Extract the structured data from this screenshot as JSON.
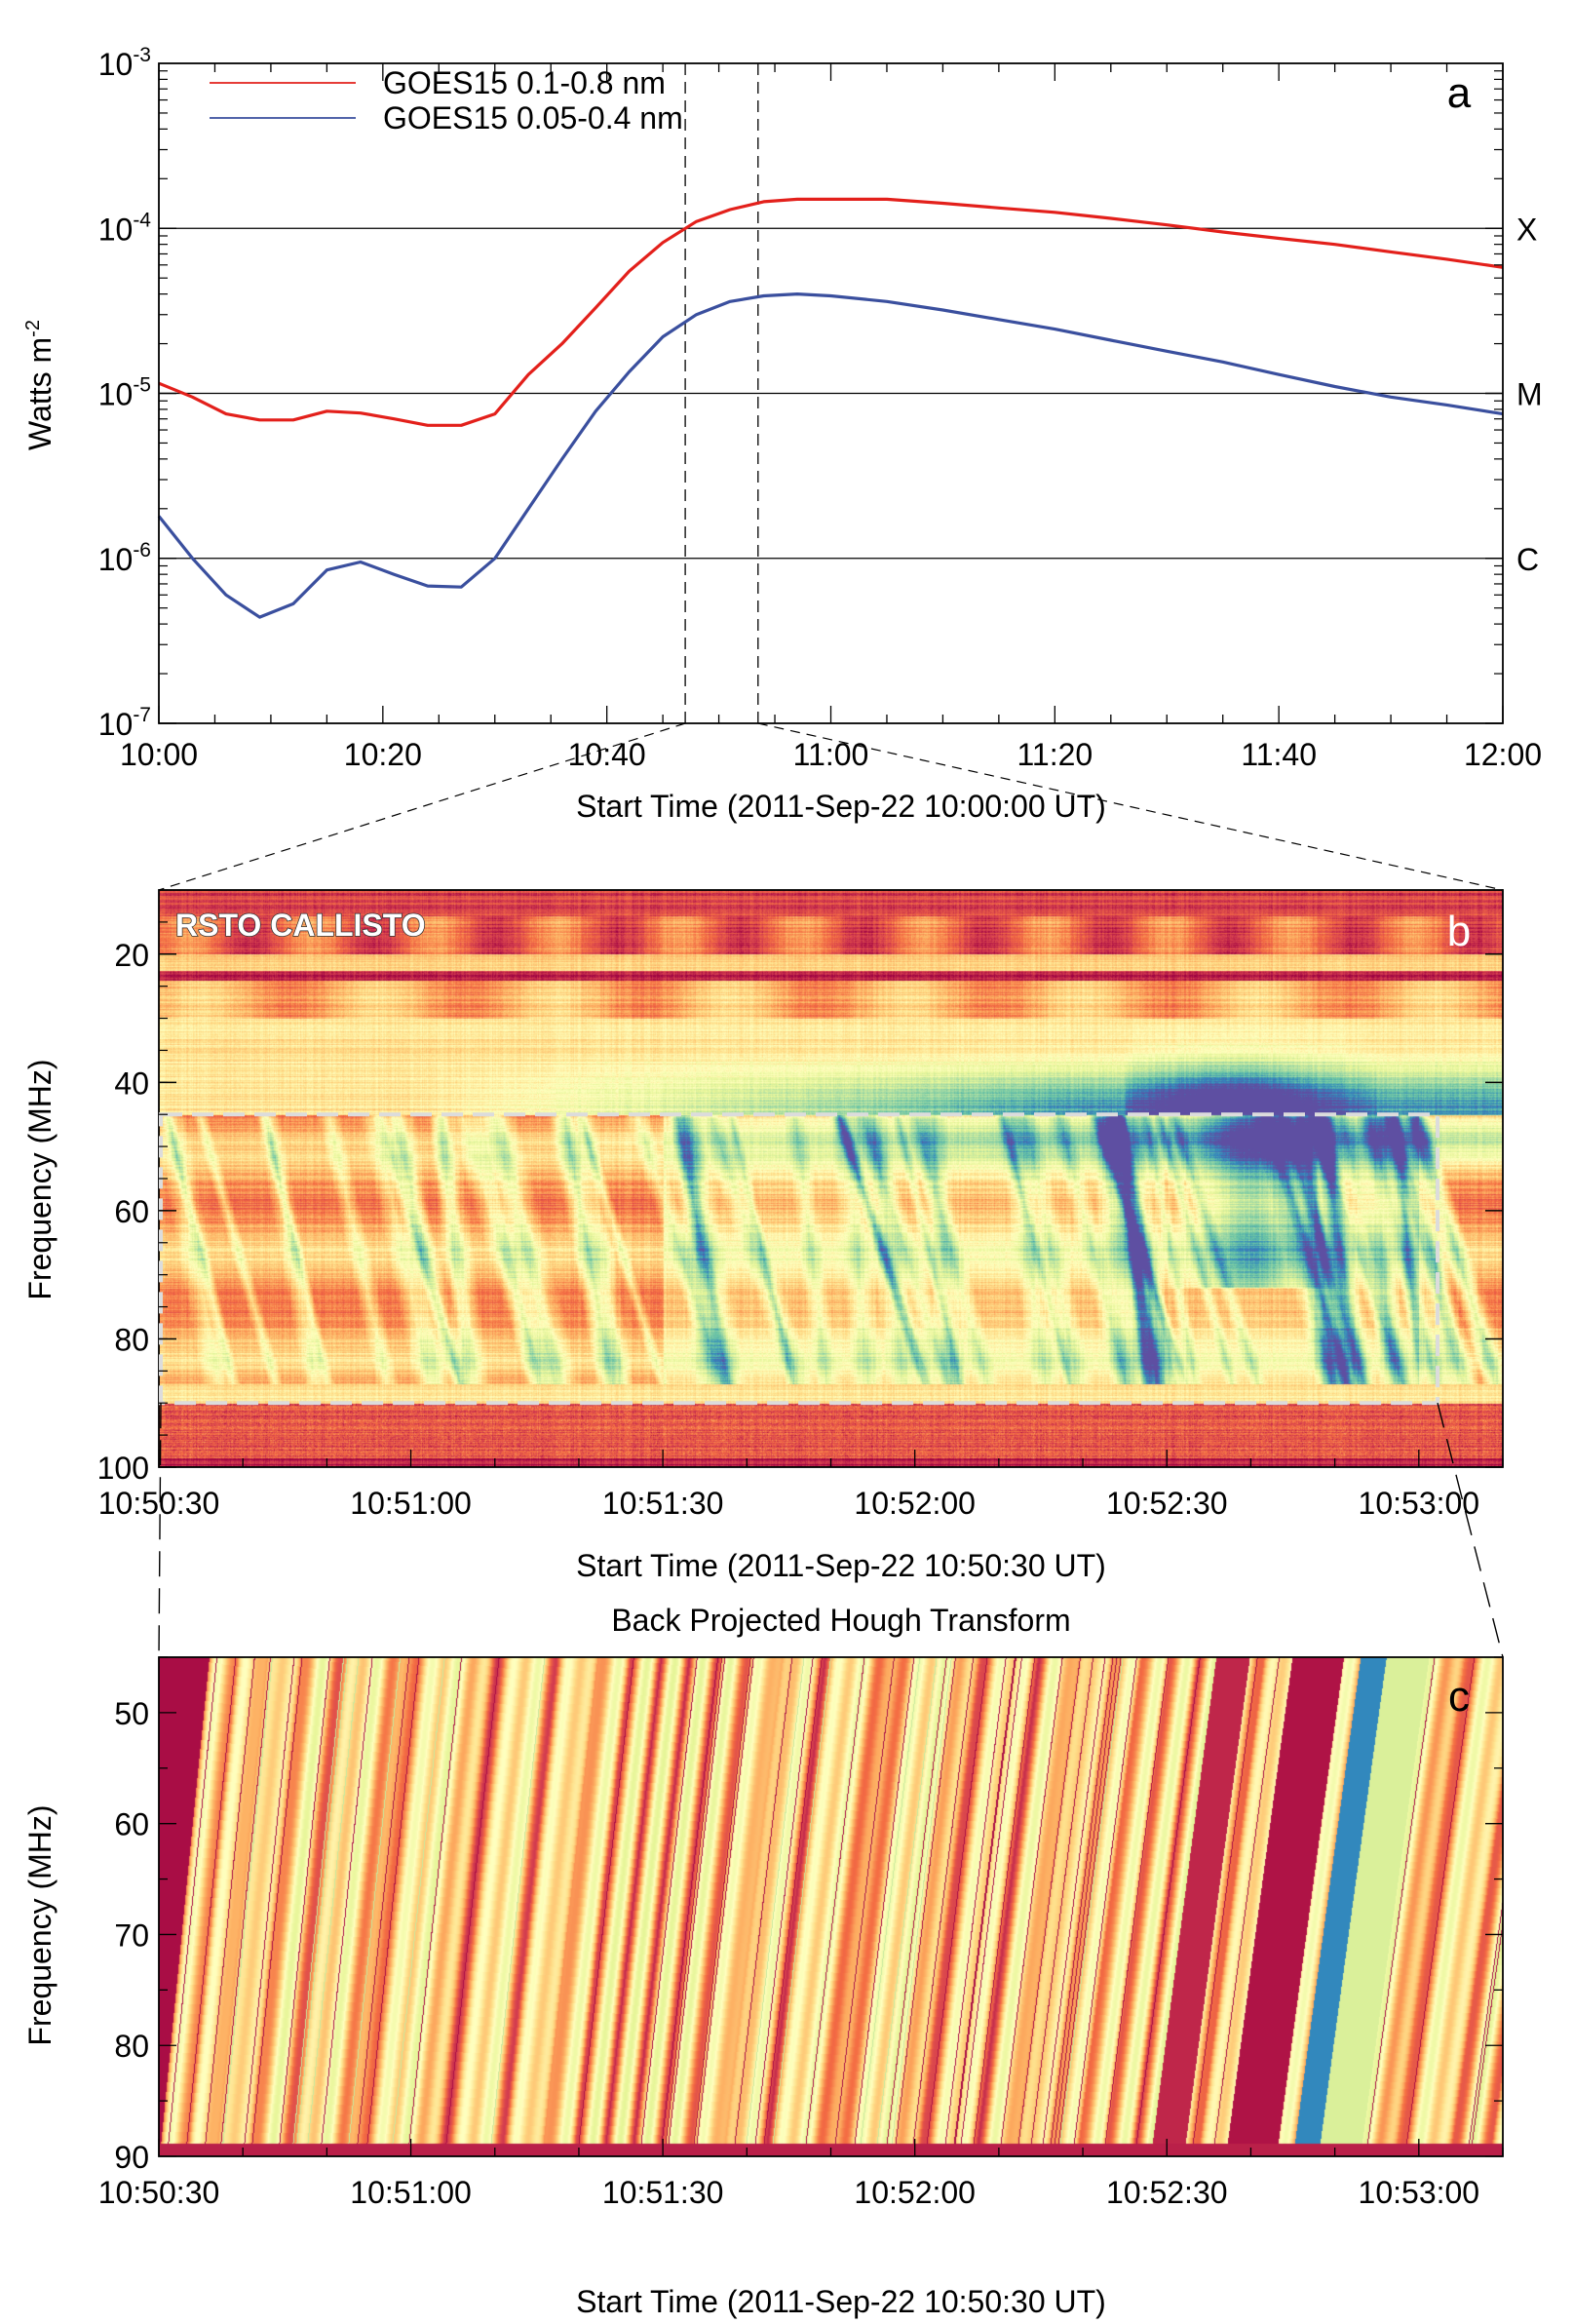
{
  "panel_a": {
    "letter": "a",
    "ylabel": "Watts m",
    "ylabel_sup": "-2",
    "xlabel": "Start Time (2011-Sep-22 10:00:00 UT)",
    "y_ticks": [
      {
        "base": "10",
        "exp": "-3"
      },
      {
        "base": "10",
        "exp": "-4"
      },
      {
        "base": "10",
        "exp": "-5"
      },
      {
        "base": "10",
        "exp": "-6"
      },
      {
        "base": "10",
        "exp": "-7"
      }
    ],
    "x_ticks": [
      "10:00",
      "10:20",
      "10:40",
      "11:00",
      "11:20",
      "11:40",
      "12:00"
    ],
    "class_labels": [
      "X",
      "M",
      "C"
    ],
    "legend": [
      "GOES15 0.1-0.8 nm",
      "GOES15 0.05-0.4 nm"
    ]
  },
  "panel_b": {
    "letter": "b",
    "title_in_plot": "RSTO CALLISTO",
    "ylabel": "Frequency (MHz)",
    "xlabel": "Start Time (2011-Sep-22 10:50:30 UT)",
    "y_ticks": [
      "20",
      "40",
      "60",
      "80",
      "100"
    ],
    "x_ticks": [
      "10:50:30",
      "10:51:00",
      "10:51:30",
      "10:52:00",
      "10:52:30",
      "10:53:00"
    ]
  },
  "panel_c": {
    "letter": "c",
    "title": "Back Projected Hough Transform",
    "ylabel": "Frequency (MHz)",
    "xlabel": "Start Time (2011-Sep-22 10:50:30 UT)",
    "y_ticks": [
      "50",
      "60",
      "70",
      "80",
      "90"
    ],
    "x_ticks": [
      "10:50:30",
      "10:51:00",
      "10:51:30",
      "10:52:00",
      "10:52:30",
      "10:53:00"
    ]
  },
  "colors": {
    "red_series": "#e3201b",
    "blue_series": "#3a4f9e",
    "spectral_dark": "#9c1d4f",
    "spectral_blue": "#3f62b0"
  },
  "chart_data": [
    {
      "type": "line",
      "panel": "a",
      "xlabel": "Start Time (2011-Sep-22 10:00:00 UT)",
      "ylabel": "Watts m-2",
      "yscale": "log",
      "xlim": [
        "10:00",
        "12:00"
      ],
      "ylim": [
        1e-07,
        0.001
      ],
      "x_minutes_after_start": [
        0,
        3,
        6,
        9,
        12,
        15,
        18,
        21,
        24,
        27,
        30,
        33,
        36,
        39,
        42,
        45,
        48,
        51,
        54,
        57,
        60,
        65,
        70,
        75,
        80,
        85,
        90,
        95,
        100,
        105,
        110,
        115,
        120
      ],
      "series": [
        {
          "name": "GOES15 0.1-0.8 nm",
          "color": "#e3201b",
          "values": [
            1.15e-05,
            9.5e-06,
            7.5e-06,
            6.9e-06,
            6.9e-06,
            7.8e-06,
            7.6e-06,
            7e-06,
            6.4e-06,
            6.4e-06,
            7.5e-06,
            1.3e-05,
            2e-05,
            3.3e-05,
            5.5e-05,
            8.2e-05,
            0.00011,
            0.00013,
            0.000145,
            0.00015,
            0.00015,
            0.00015,
            0.000142,
            0.000133,
            0.000125,
            0.000115,
            0.000105,
            9.5e-05,
            8.7e-05,
            8e-05,
            7.2e-05,
            6.5e-05,
            5.8e-05
          ]
        },
        {
          "name": "GOES15 0.05-0.4 nm",
          "color": "#3a4f9e",
          "values": [
            1.8e-06,
            1e-06,
            6e-07,
            4.4e-07,
            5.3e-07,
            8.5e-07,
            9.5e-07,
            8e-07,
            6.8e-07,
            6.7e-07,
            1e-06,
            2e-06,
            4e-06,
            7.8e-06,
            1.35e-05,
            2.2e-05,
            3e-05,
            3.6e-05,
            3.9e-05,
            4e-05,
            3.9e-05,
            3.6e-05,
            3.2e-05,
            2.8e-05,
            2.45e-05,
            2.1e-05,
            1.8e-05,
            1.55e-05,
            1.3e-05,
            1.1e-05,
            9.5e-06,
            8.5e-06,
            7.5e-06
          ]
        }
      ],
      "reference_lines": [
        {
          "label": "X",
          "value": 0.0001
        },
        {
          "label": "M",
          "value": 1e-05
        },
        {
          "label": "C",
          "value": 1e-06
        }
      ],
      "vertical_markers_minutes": [
        47,
        53.5
      ],
      "legend_position": "top-left",
      "grid": false
    },
    {
      "type": "heatmap",
      "panel": "b",
      "title": "RSTO CALLISTO",
      "xlabel": "Start Time (2011-Sep-22 10:50:30 UT)",
      "ylabel": "Frequency (MHz)",
      "xlim_seconds_after_start": [
        0,
        160
      ],
      "ylim_mhz": [
        100,
        10
      ],
      "highlight_box": {
        "t_start_s": 0,
        "t_end_s": 152,
        "f_low_mhz": 45,
        "f_high_mhz": 90
      },
      "colormap": "Spectral"
    },
    {
      "type": "heatmap",
      "panel": "c",
      "title": "Back Projected Hough Transform",
      "xlabel": "Start Time (2011-Sep-22 10:50:30 UT)",
      "ylabel": "Frequency (MHz)",
      "xlim_seconds_after_start": [
        0,
        160
      ],
      "ylim_mhz": [
        90,
        45
      ],
      "colormap": "Spectral"
    }
  ]
}
